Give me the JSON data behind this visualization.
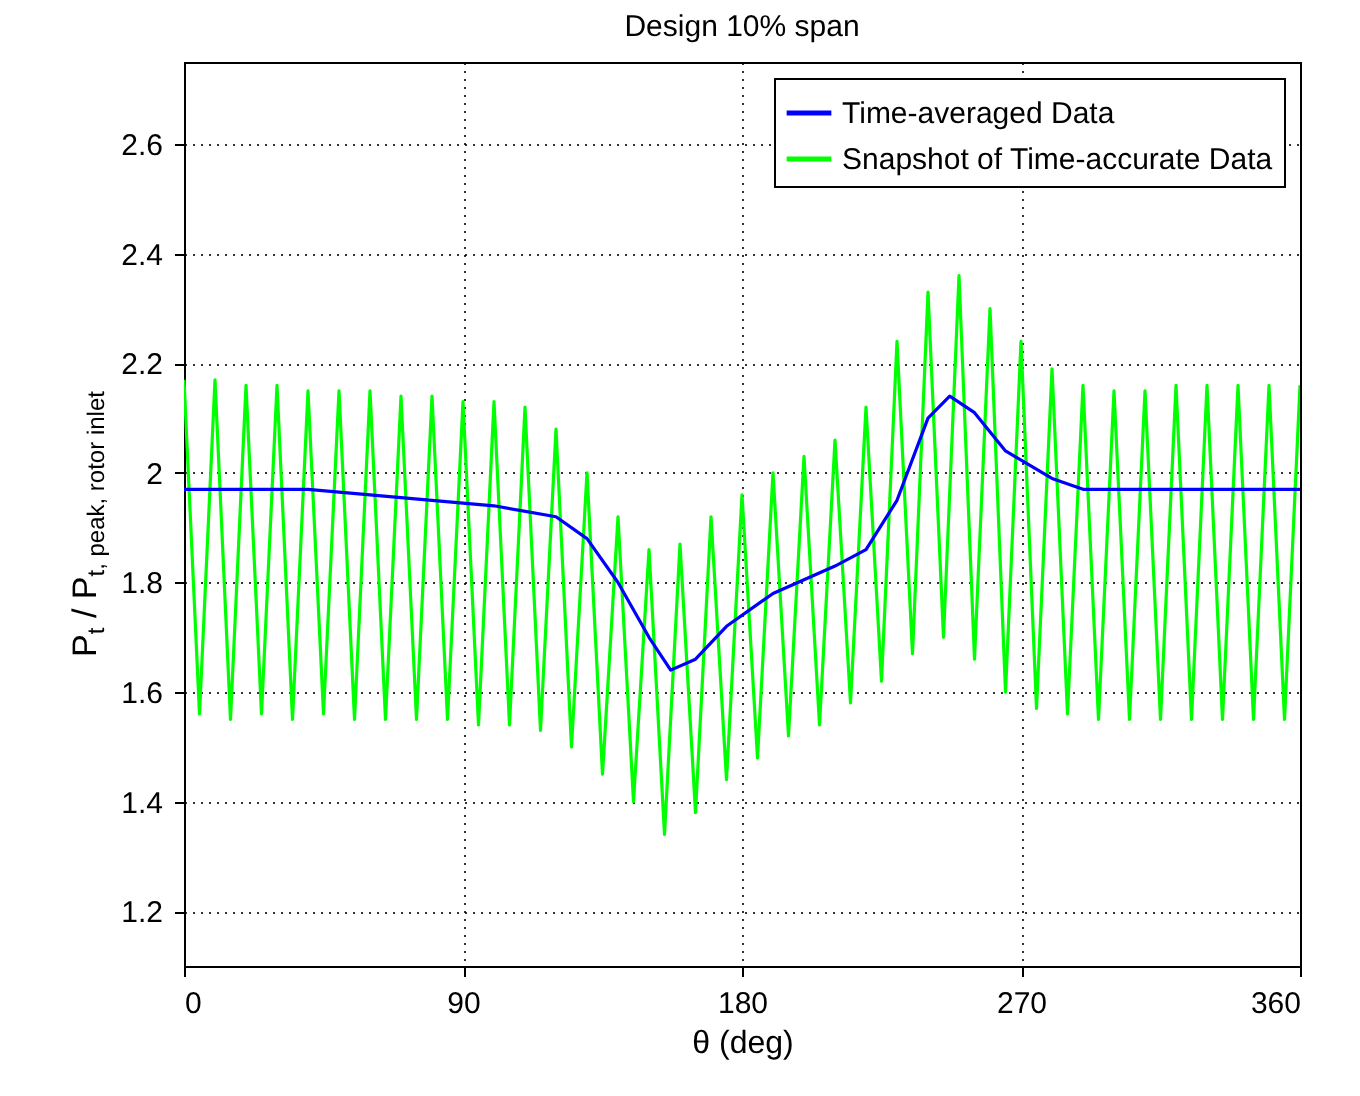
{
  "chart_data": {
    "type": "line",
    "title": "Design 10% span",
    "xlabel": "θ (deg)",
    "ylabel": "P$_{t}$ / P$_{t, peak, rotor inlet}$",
    "xlim": [
      0,
      360
    ],
    "xticks": [
      0,
      90,
      180,
      270,
      360
    ],
    "ylim": [
      1.1,
      2.75
    ],
    "yticks": [
      1.2,
      1.4,
      1.6,
      1.8,
      2,
      2.2,
      2.4,
      2.6
    ],
    "grid": true,
    "legend": "top right",
    "series": [
      {
        "name": "Time-averaged Data",
        "color": "#0000ff",
        "x": [
          0,
          20,
          40,
          60,
          80,
          100,
          120,
          130,
          140,
          150,
          157,
          165,
          175,
          190,
          210,
          220,
          230,
          240,
          247,
          255,
          265,
          280,
          290,
          310,
          330,
          360
        ],
        "values": [
          1.97,
          1.97,
          1.97,
          1.96,
          1.95,
          1.94,
          1.92,
          1.88,
          1.8,
          1.7,
          1.64,
          1.66,
          1.72,
          1.78,
          1.83,
          1.86,
          1.95,
          2.1,
          2.14,
          2.11,
          2.04,
          1.99,
          1.97,
          1.97,
          1.97,
          1.97
        ]
      },
      {
        "name": "Snapshot of Time-accurate Data",
        "color": "#00ff00",
        "x": [
          0,
          5,
          10,
          15,
          20,
          25,
          30,
          35,
          40,
          45,
          50,
          55,
          60,
          65,
          70,
          75,
          80,
          85,
          90,
          95,
          100,
          105,
          110,
          115,
          120,
          125,
          130,
          135,
          140,
          145,
          150,
          155,
          160,
          165,
          170,
          175,
          180,
          185,
          190,
          195,
          200,
          205,
          210,
          215,
          220,
          225,
          230,
          235,
          240,
          245,
          250,
          255,
          260,
          265,
          270,
          275,
          280,
          285,
          290,
          295,
          300,
          305,
          310,
          315,
          320,
          325,
          330,
          335,
          340,
          345,
          350,
          355,
          360
        ],
        "values": [
          2.17,
          1.56,
          2.17,
          1.55,
          2.16,
          1.56,
          2.16,
          1.55,
          2.15,
          1.56,
          2.15,
          1.55,
          2.15,
          1.55,
          2.14,
          1.55,
          2.14,
          1.55,
          2.13,
          1.54,
          2.13,
          1.54,
          2.12,
          1.53,
          2.08,
          1.5,
          2.0,
          1.45,
          1.92,
          1.4,
          1.86,
          1.34,
          1.87,
          1.38,
          1.92,
          1.44,
          1.96,
          1.48,
          2.0,
          1.52,
          2.03,
          1.54,
          2.06,
          1.58,
          2.12,
          1.62,
          2.24,
          1.67,
          2.33,
          1.7,
          2.36,
          1.66,
          2.3,
          1.6,
          2.24,
          1.57,
          2.19,
          1.56,
          2.16,
          1.55,
          2.15,
          1.55,
          2.15,
          1.55,
          2.16,
          1.55,
          2.16,
          1.55,
          2.16,
          1.55,
          2.16,
          1.55,
          2.16
        ]
      }
    ]
  }
}
